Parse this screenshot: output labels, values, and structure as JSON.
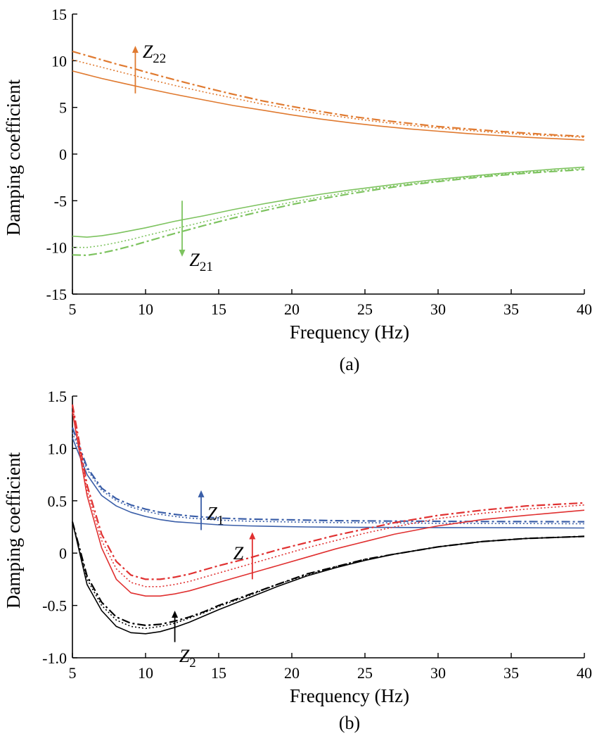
{
  "chart_data": [
    {
      "type": "line",
      "panel": "a",
      "caption": "(a)",
      "xlabel": "Frequency (Hz)",
      "ylabel": "Damping coefficient",
      "xlim": [
        5,
        40
      ],
      "ylim": [
        -15,
        15
      ],
      "xticks": [
        "5",
        "10",
        "15",
        "20",
        "25",
        "30",
        "35",
        "40"
      ],
      "yticks": [
        "-15",
        "-10",
        "-5",
        "0",
        "5",
        "10",
        "15"
      ],
      "grid": false,
      "x": [
        5,
        6,
        7,
        8,
        9,
        10,
        12,
        14,
        16,
        18,
        20,
        22,
        24,
        26,
        28,
        30,
        32,
        34,
        36,
        38,
        40
      ],
      "series": [
        {
          "group": "Z22",
          "style": "solid",
          "color": "#e07a30",
          "values": [
            8.9,
            8.5,
            8.1,
            7.75,
            7.4,
            7.05,
            6.4,
            5.8,
            5.2,
            4.7,
            4.2,
            3.75,
            3.35,
            3.0,
            2.7,
            2.45,
            2.2,
            2.0,
            1.8,
            1.65,
            1.5
          ]
        },
        {
          "group": "Z22",
          "style": "dotted",
          "color": "#e07a30",
          "values": [
            10.1,
            9.7,
            9.3,
            8.9,
            8.5,
            8.1,
            7.35,
            6.65,
            6.0,
            5.35,
            4.8,
            4.3,
            3.85,
            3.45,
            3.1,
            2.8,
            2.55,
            2.3,
            2.1,
            1.95,
            1.8
          ]
        },
        {
          "group": "Z22",
          "style": "dashdot",
          "color": "#e07a30",
          "values": [
            11.0,
            10.55,
            10.1,
            9.65,
            9.25,
            8.8,
            7.95,
            7.15,
            6.4,
            5.7,
            5.1,
            4.55,
            4.05,
            3.65,
            3.3,
            2.95,
            2.7,
            2.45,
            2.25,
            2.05,
            1.9
          ]
        },
        {
          "group": "Z21",
          "style": "solid",
          "color": "#7dc35f",
          "values": [
            -8.8,
            -8.9,
            -8.75,
            -8.5,
            -8.2,
            -7.9,
            -7.2,
            -6.6,
            -5.95,
            -5.35,
            -4.8,
            -4.3,
            -3.85,
            -3.45,
            -3.05,
            -2.7,
            -2.4,
            -2.1,
            -1.85,
            -1.6,
            -1.4
          ]
        },
        {
          "group": "Z21",
          "style": "dotted",
          "color": "#7dc35f",
          "values": [
            -10.0,
            -10.0,
            -9.8,
            -9.5,
            -9.15,
            -8.75,
            -8.0,
            -7.25,
            -6.5,
            -5.8,
            -5.15,
            -4.6,
            -4.05,
            -3.6,
            -3.2,
            -2.85,
            -2.5,
            -2.2,
            -1.95,
            -1.75,
            -1.55
          ]
        },
        {
          "group": "Z21",
          "style": "dashdot",
          "color": "#7dc35f",
          "values": [
            -10.8,
            -10.85,
            -10.6,
            -10.25,
            -9.85,
            -9.4,
            -8.5,
            -7.65,
            -6.85,
            -6.1,
            -5.4,
            -4.8,
            -4.25,
            -3.75,
            -3.3,
            -2.95,
            -2.6,
            -2.3,
            -2.05,
            -1.85,
            -1.65
          ]
        }
      ],
      "annotations": [
        {
          "base": "Z",
          "sub": "22",
          "color": "#e07a30",
          "arrow": "up",
          "at_x": 9.3,
          "from_y": 6.5,
          "to_y": 11.6,
          "label_x": 9.8,
          "label_y": 11.0
        },
        {
          "base": "Z",
          "sub": "21",
          "color": "#7dc35f",
          "arrow": "down",
          "at_x": 12.5,
          "from_y": -5.0,
          "to_y": -11.0,
          "label_x": 13.0,
          "label_y": -11.3
        }
      ]
    },
    {
      "type": "line",
      "panel": "b",
      "caption": "(b)",
      "xlabel": "Frequency (Hz)",
      "ylabel": "Damping coefficient",
      "xlim": [
        5,
        40
      ],
      "ylim": [
        -1.0,
        1.5
      ],
      "xticks": [
        "5",
        "10",
        "15",
        "20",
        "25",
        "30",
        "35",
        "40"
      ],
      "yticks": [
        "-1.0",
        "-0.5",
        "0",
        "0.5",
        "1.0",
        "1.5"
      ],
      "grid": false,
      "x": [
        5,
        6,
        7,
        8,
        9,
        10,
        11,
        12,
        13,
        14,
        15,
        17,
        19,
        21,
        23,
        25,
        27,
        30,
        33,
        36,
        40
      ],
      "series": [
        {
          "group": "Z1",
          "style": "solid",
          "color": "#3a5ea8",
          "values": [
            1.1,
            0.75,
            0.55,
            0.45,
            0.39,
            0.35,
            0.32,
            0.3,
            0.29,
            0.28,
            0.27,
            0.26,
            0.255,
            0.25,
            0.248,
            0.246,
            0.245,
            0.244,
            0.243,
            0.242,
            0.24
          ]
        },
        {
          "group": "Z1",
          "style": "dotted",
          "color": "#3a5ea8",
          "values": [
            1.15,
            0.8,
            0.6,
            0.5,
            0.44,
            0.4,
            0.37,
            0.35,
            0.335,
            0.325,
            0.315,
            0.305,
            0.3,
            0.295,
            0.292,
            0.29,
            0.288,
            0.285,
            0.283,
            0.282,
            0.28
          ]
        },
        {
          "group": "Z1",
          "style": "dashdot",
          "color": "#3a5ea8",
          "values": [
            1.2,
            0.82,
            0.62,
            0.52,
            0.46,
            0.42,
            0.39,
            0.37,
            0.355,
            0.345,
            0.335,
            0.325,
            0.32,
            0.315,
            0.31,
            0.308,
            0.306,
            0.304,
            0.302,
            0.301,
            0.3
          ]
        },
        {
          "group": "Z",
          "style": "solid",
          "color": "#e03030",
          "values": [
            1.35,
            0.55,
            0.05,
            -0.25,
            -0.38,
            -0.41,
            -0.41,
            -0.39,
            -0.36,
            -0.32,
            -0.28,
            -0.2,
            -0.12,
            -0.04,
            0.04,
            0.11,
            0.18,
            0.26,
            0.32,
            0.36,
            0.41
          ]
        },
        {
          "group": "Z",
          "style": "dotted",
          "color": "#e03030",
          "values": [
            1.4,
            0.6,
            0.12,
            -0.15,
            -0.28,
            -0.32,
            -0.32,
            -0.3,
            -0.27,
            -0.23,
            -0.19,
            -0.11,
            -0.03,
            0.05,
            0.12,
            0.19,
            0.25,
            0.33,
            0.38,
            0.42,
            0.46
          ]
        },
        {
          "group": "Z",
          "style": "dashdot",
          "color": "#e03030",
          "values": [
            1.42,
            0.65,
            0.18,
            -0.08,
            -0.21,
            -0.25,
            -0.25,
            -0.23,
            -0.2,
            -0.16,
            -0.12,
            -0.05,
            0.03,
            0.1,
            0.17,
            0.23,
            0.29,
            0.36,
            0.41,
            0.45,
            0.48
          ]
        },
        {
          "group": "Z2",
          "style": "solid",
          "color": "#000000",
          "values": [
            0.3,
            -0.3,
            -0.55,
            -0.7,
            -0.76,
            -0.77,
            -0.75,
            -0.71,
            -0.66,
            -0.6,
            -0.54,
            -0.43,
            -0.32,
            -0.22,
            -0.14,
            -0.07,
            -0.01,
            0.06,
            0.11,
            0.14,
            0.16
          ]
        },
        {
          "group": "Z2",
          "style": "dotted",
          "color": "#000000",
          "values": [
            0.3,
            -0.25,
            -0.5,
            -0.64,
            -0.7,
            -0.72,
            -0.7,
            -0.67,
            -0.62,
            -0.57,
            -0.51,
            -0.41,
            -0.3,
            -0.21,
            -0.13,
            -0.06,
            -0.01,
            0.06,
            0.11,
            0.14,
            0.16
          ]
        },
        {
          "group": "Z2",
          "style": "dashdot",
          "color": "#000000",
          "values": [
            0.3,
            -0.22,
            -0.47,
            -0.61,
            -0.67,
            -0.69,
            -0.68,
            -0.65,
            -0.61,
            -0.56,
            -0.5,
            -0.4,
            -0.3,
            -0.2,
            -0.13,
            -0.06,
            -0.01,
            0.06,
            0.11,
            0.14,
            0.16
          ]
        }
      ],
      "annotations": [
        {
          "base": "Z",
          "sub": "1",
          "color": "#3a5ea8",
          "arrow": "up",
          "at_x": 13.8,
          "from_y": 0.22,
          "to_y": 0.6,
          "label_x": 14.2,
          "label_y": 0.38
        },
        {
          "base": "Z",
          "sub": "",
          "color": "#e03030",
          "arrow": "up",
          "at_x": 17.3,
          "from_y": -0.25,
          "to_y": 0.2,
          "label_x": 16.0,
          "label_y": 0.0
        },
        {
          "base": "Z",
          "sub": "2",
          "color": "#000000",
          "arrow": "up",
          "at_x": 12.0,
          "from_y": -0.85,
          "to_y": -0.55,
          "label_x": 12.3,
          "label_y": -0.98
        }
      ]
    }
  ]
}
